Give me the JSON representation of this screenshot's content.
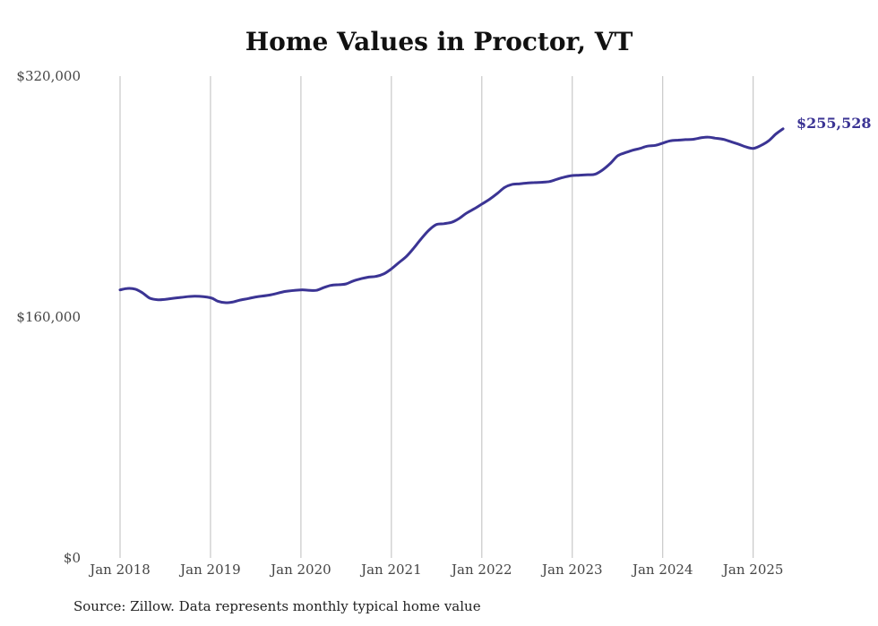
{
  "colors": {
    "line": "#3b3494",
    "grid": "#bdbdbd",
    "text": "#444444"
  },
  "source_note": "Source: Zillow. Data represents monthly typical home value",
  "chart_data": {
    "type": "line",
    "title": "Home Values in Proctor, VT",
    "xlabel": "",
    "ylabel": "",
    "ylim": [
      0,
      320000
    ],
    "yticks": [
      {
        "value": 0,
        "label": "$0"
      },
      {
        "value": 160000,
        "label": "$160,000"
      },
      {
        "value": 320000,
        "label": "$320,000"
      }
    ],
    "xticks": [
      {
        "value": 2018.0,
        "label": "Jan 2018"
      },
      {
        "value": 2019.0,
        "label": "Jan 2019"
      },
      {
        "value": 2020.0,
        "label": "Jan 2020"
      },
      {
        "value": 2021.0,
        "label": "Jan 2021"
      },
      {
        "value": 2022.0,
        "label": "Jan 2022"
      },
      {
        "value": 2023.0,
        "label": "Jan 2023"
      },
      {
        "value": 2024.0,
        "label": "Jan 2024"
      },
      {
        "value": 2025.0,
        "label": "Jan 2025"
      }
    ],
    "xlim": [
      2018.0,
      2025.33
    ],
    "grid": "vertical",
    "end_label": "$255,528",
    "series": [
      {
        "x": [
          2018.0,
          2018.08,
          2018.17,
          2018.25,
          2018.33,
          2018.42,
          2018.5,
          2018.67,
          2018.83,
          2019.0,
          2019.08,
          2019.17,
          2019.25,
          2019.33,
          2019.42,
          2019.5,
          2019.67,
          2019.83,
          2020.0,
          2020.08,
          2020.17,
          2020.25,
          2020.33,
          2020.42,
          2020.5,
          2020.58,
          2020.67,
          2020.75,
          2020.83,
          2020.92,
          2021.0,
          2021.08,
          2021.17,
          2021.25,
          2021.33,
          2021.42,
          2021.5,
          2021.58,
          2021.67,
          2021.75,
          2021.83,
          2021.92,
          2022.0,
          2022.08,
          2022.17,
          2022.25,
          2022.33,
          2022.42,
          2022.5,
          2022.58,
          2022.67,
          2022.75,
          2022.83,
          2022.92,
          2023.0,
          2023.08,
          2023.17,
          2023.25,
          2023.33,
          2023.42,
          2023.5,
          2023.58,
          2023.67,
          2023.75,
          2023.83,
          2023.92,
          2024.0,
          2024.08,
          2024.17,
          2024.25,
          2024.33,
          2024.42,
          2024.5,
          2024.58,
          2024.67,
          2024.75,
          2024.83,
          2024.92,
          2025.0,
          2025.08,
          2025.17,
          2025.25,
          2025.33
        ],
        "values": [
          178000,
          179000,
          178500,
          176000,
          172500,
          171500,
          171800,
          173000,
          173800,
          172800,
          170500,
          169500,
          170000,
          171300,
          172300,
          173300,
          174800,
          177000,
          178000,
          177800,
          177700,
          179500,
          181000,
          181500,
          182000,
          184000,
          185500,
          186500,
          187000,
          188800,
          192000,
          196000,
          200500,
          206000,
          212000,
          218000,
          221500,
          222000,
          223000,
          225500,
          229000,
          232000,
          235000,
          238000,
          242000,
          246000,
          248000,
          248500,
          249000,
          249300,
          249500,
          250000,
          251500,
          253000,
          254000,
          254200,
          254500,
          254800,
          257500,
          262000,
          267000,
          269000,
          270800,
          272000,
          273500,
          274000,
          275500,
          277000,
          277500,
          277800,
          278000,
          279000,
          279500,
          278800,
          278000,
          276500,
          275000,
          273000,
          272000,
          273800,
          277000,
          281500,
          255528
        ]
      }
    ]
  }
}
